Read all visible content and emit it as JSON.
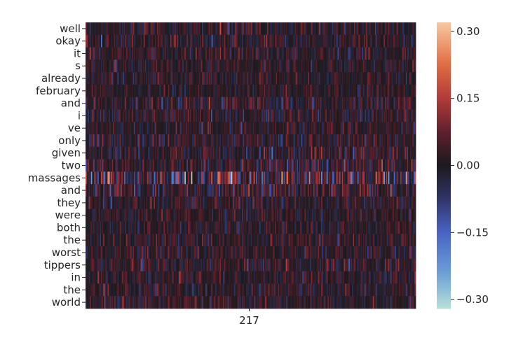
{
  "chart_data": {
    "type": "heatmap",
    "title": "",
    "xlabel": "",
    "ylabel": "",
    "x_tick_labels": [
      "217"
    ],
    "y_labels": [
      "well",
      "okay",
      "it",
      "s",
      "already",
      "february",
      "and",
      "i",
      "ve",
      "only",
      "given",
      "two",
      "massages",
      "and",
      "they",
      "were",
      "both",
      "the",
      "worst",
      "tippers",
      "in",
      "the",
      "world"
    ],
    "num_columns": 300,
    "colorbar": {
      "colormap": "icefire",
      "range": [
        -0.32,
        0.32
      ],
      "ticks": [
        0.3,
        0.15,
        0.0,
        -0.15,
        -0.3
      ],
      "tick_labels": [
        "0.30",
        "0.15",
        "0.00",
        "−0.15",
        "−0.30"
      ]
    },
    "row_intensity": [
      0.55,
      0.55,
      0.5,
      0.45,
      0.5,
      0.4,
      0.6,
      0.6,
      0.5,
      0.55,
      0.65,
      0.7,
      1.3,
      0.75,
      0.55,
      0.45,
      0.45,
      0.5,
      0.55,
      0.6,
      0.5,
      0.5,
      0.55
    ],
    "colormap_stops": [
      {
        "v": -0.32,
        "color": "#b8e0d8"
      },
      {
        "v": -0.24,
        "color": "#6b9fd6"
      },
      {
        "v": -0.15,
        "color": "#4a63c4"
      },
      {
        "v": -0.07,
        "color": "#2f3362"
      },
      {
        "v": 0.0,
        "color": "#1c1a1e"
      },
      {
        "v": 0.07,
        "color": "#5a1f2c"
      },
      {
        "v": 0.15,
        "color": "#b23a3a"
      },
      {
        "v": 0.23,
        "color": "#e27045"
      },
      {
        "v": 0.32,
        "color": "#f6c9a2"
      }
    ]
  }
}
